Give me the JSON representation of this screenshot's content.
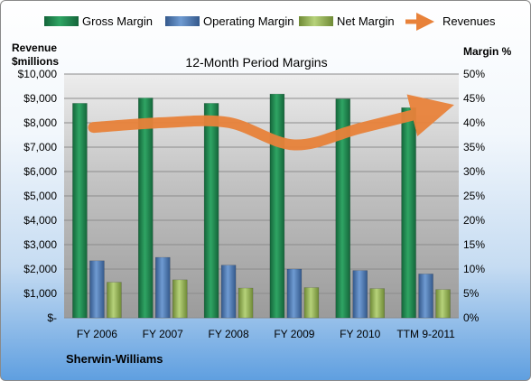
{
  "chart_data": {
    "type": "bar",
    "title": "12-Month Period Margins",
    "company": "Sherwin-Williams",
    "categories": [
      "FY 2006",
      "FY 2007",
      "FY 2008",
      "FY 2009",
      "FY 2010",
      "TTM 9-2011"
    ],
    "left_axis": {
      "label_line1": "Revenue",
      "label_line2": "$millions",
      "ylim": [
        0,
        10000
      ],
      "ticks": [
        "$-",
        "$1,000",
        "$2,000",
        "$3,000",
        "$4,000",
        "$5,000",
        "$6,000",
        "$7,000",
        "$8,000",
        "$9,000",
        "$10,000"
      ]
    },
    "right_axis": {
      "label": "Margin %",
      "ylim": [
        0,
        50
      ],
      "ticks": [
        "0%",
        "5%",
        "10%",
        "15%",
        "20%",
        "25%",
        "30%",
        "35%",
        "40%",
        "45%",
        "50%"
      ]
    },
    "series": [
      {
        "name": "Gross Margin",
        "axis": "right",
        "kind": "bar",
        "color": "#1f8a4c",
        "values": [
          44.0,
          45.1,
          44.0,
          45.9,
          44.9,
          43.1
        ]
      },
      {
        "name": "Operating Margin",
        "axis": "right",
        "kind": "bar",
        "color": "#4f81bd",
        "values": [
          11.7,
          12.4,
          10.8,
          10.0,
          9.7,
          9.0
        ]
      },
      {
        "name": "Net Margin",
        "axis": "right",
        "kind": "bar",
        "color": "#9bbb59",
        "values": [
          7.3,
          7.8,
          6.1,
          6.2,
          6.0,
          5.8
        ]
      },
      {
        "name": "Revenues",
        "axis": "left",
        "kind": "line",
        "color": "#e8823a",
        "values": [
          7810,
          8005,
          8011,
          7094,
          7776,
          8520
        ]
      }
    ],
    "legend_position": "top",
    "grid": true
  }
}
